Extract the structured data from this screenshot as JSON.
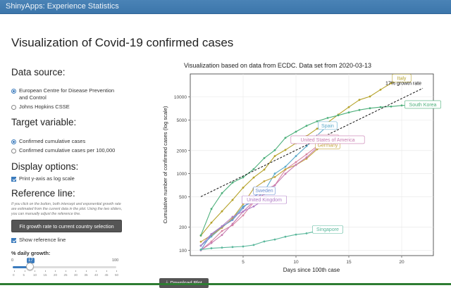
{
  "app": {
    "title": "ShinyApps: Experience Statistics"
  },
  "page": {
    "title": "Visualization of Covid-19 confirmed cases"
  },
  "data_source": {
    "heading": "Data source:",
    "options": [
      {
        "label_line1": "European Centre for Disease Prevention",
        "label_line2": "and Control",
        "selected": true
      },
      {
        "label_line1": "Johns Hopkins CSSE",
        "label_line2": "",
        "selected": false
      }
    ]
  },
  "target_variable": {
    "heading": "Target variable:",
    "options": [
      {
        "label": "Confirmed cumulative cases",
        "selected": true
      },
      {
        "label": "Confirmed cumulative cases per 100,000",
        "selected": false
      }
    ]
  },
  "display_options": {
    "heading": "Display options:",
    "log_scale_label": "Print y-axis as log scale",
    "log_scale_checked": true
  },
  "reference_line": {
    "heading": "Reference line:",
    "help_text": "If you click on the button, both intercept and exponential growth rate are estimated from the current data in the plot. Using the two sliders, you can manually adjust the reference line.",
    "fit_button": "Fit growth rate to current country selection",
    "show_label": "Show reference line",
    "show_checked": true,
    "slider": {
      "label": "% daily growth:",
      "min": 0,
      "max": 100,
      "value": 17,
      "ticks": [
        "0",
        "5",
        "10",
        "15",
        "20",
        "25",
        "30",
        "35",
        "40",
        "45",
        "50"
      ]
    }
  },
  "download_button": "Download Plot",
  "colors": {
    "navbar": "#3c76ab",
    "accent": "#3b7bbd",
    "button": "#555555"
  },
  "chart_data": {
    "type": "line",
    "title": "Visualization based on data from ECDC. Data set from 2020-03-13",
    "xlabel": "Days since 100th case",
    "ylabel": "Cumulative number of confirmed cases (log scale)",
    "yscale": "log",
    "xlim": [
      0,
      23
    ],
    "ylim": [
      85,
      20000
    ],
    "x_ticks": [
      5,
      10,
      15,
      20
    ],
    "y_ticks": [
      100,
      200,
      500,
      1000,
      2000,
      5000,
      10000
    ],
    "grid": true,
    "reference_line": {
      "label": "17% growth rate",
      "growth": 0.17,
      "start": [
        1,
        500
      ],
      "end": [
        22,
        13000
      ]
    },
    "series": [
      {
        "name": "Italy",
        "color": "#b5a22a",
        "x": [
          1,
          2,
          3,
          4,
          5,
          6,
          7,
          8,
          9,
          10,
          11,
          12,
          13,
          14,
          15,
          16,
          17,
          18,
          19,
          20
        ],
        "y": [
          155,
          229,
          322,
          453,
          655,
          888,
          1128,
          1694,
          2036,
          2502,
          3089,
          3858,
          4636,
          5883,
          7375,
          9172,
          10149,
          12462,
          15113,
          17660
        ]
      },
      {
        "name": "South Korea",
        "color": "#4caf7a",
        "x": [
          1,
          2,
          3,
          4,
          5,
          6,
          7,
          8,
          9,
          10,
          11,
          12,
          13,
          14,
          15,
          16,
          17,
          18,
          19,
          20,
          21,
          22
        ],
        "y": [
          156,
          346,
          556,
          763,
          893,
          1146,
          1595,
          2022,
          2931,
          3526,
          4212,
          4812,
          5328,
          5766,
          6284,
          6767,
          7134,
          7382,
          7513,
          7755,
          7869,
          7979
        ]
      },
      {
        "name": "Spain",
        "color": "#5aa9c9",
        "x": [
          1,
          2,
          3,
          4,
          5,
          6,
          7,
          8,
          9,
          10,
          11,
          12,
          13
        ],
        "y": [
          114,
          151,
          198,
          257,
          374,
          430,
          589,
          999,
          1231,
          1695,
          2277,
          3146,
          4231
        ]
      },
      {
        "name": "France",
        "color": "#d886a3",
        "x": [
          1,
          2,
          3,
          4,
          5,
          6,
          7,
          8,
          9,
          10,
          11,
          12,
          13
        ],
        "y": [
          100,
          130,
          178,
          212,
          285,
          423,
          613,
          706,
          1126,
          1412,
          1784,
          2281,
          2876
        ]
      },
      {
        "name": "Germany",
        "color": "#c2a53c",
        "x": [
          1,
          2,
          3,
          4,
          5,
          6,
          7,
          8,
          9,
          10,
          11,
          12,
          13
        ],
        "y": [
          129,
          157,
          196,
          262,
          400,
          639,
          795,
          902,
          1139,
          1296,
          1567,
          2078,
          2369
        ]
      },
      {
        "name": "United States of America",
        "color": "#c77bb0",
        "x": [
          1,
          2,
          3,
          4,
          5,
          6,
          7,
          8,
          9,
          10,
          11,
          12,
          13
        ],
        "y": [
          100,
          124,
          158,
          221,
          319,
          435,
          541,
          704,
          994,
          1301,
          1630,
          2183,
          2770
        ]
      },
      {
        "name": "Sweden",
        "color": "#6b8fd1",
        "x": [
          1,
          2,
          3,
          4,
          5,
          6,
          7
        ],
        "y": [
          101,
          161,
          203,
          248,
          355,
          500,
          599
        ]
      },
      {
        "name": "United Kingdom",
        "color": "#b07cc6",
        "x": [
          1,
          2,
          3,
          4,
          5,
          6,
          7
        ],
        "y": [
          115,
          163,
          206,
          273,
          321,
          373,
          456
        ]
      },
      {
        "name": "Singapore",
        "color": "#5bb89c",
        "x": [
          1,
          2,
          3,
          4,
          5,
          6,
          7,
          8,
          9,
          10,
          11,
          12,
          13
        ],
        "y": [
          102,
          106,
          108,
          110,
          112,
          117,
          130,
          138,
          150,
          160,
          166,
          178,
          187
        ]
      }
    ]
  }
}
